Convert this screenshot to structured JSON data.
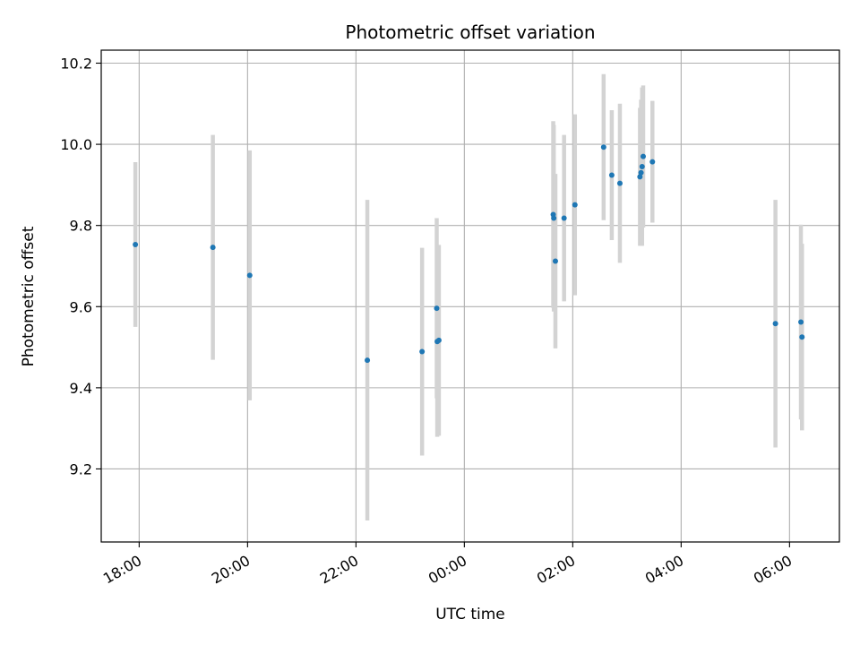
{
  "chart_data": {
    "type": "scatter",
    "title": "Photometric offset variation",
    "xlabel": "UTC time",
    "ylabel": "Photometric offset",
    "x_unit": "hours since 00:00 UTC",
    "xlim": [
      -6.7,
      6.92
    ],
    "ylim": [
      9.02,
      10.232
    ],
    "x_ticks": [
      {
        "value": -6,
        "label": "18:00"
      },
      {
        "value": -4,
        "label": "20:00"
      },
      {
        "value": -2,
        "label": "22:00"
      },
      {
        "value": 0,
        "label": "00:00"
      },
      {
        "value": 2,
        "label": "02:00"
      },
      {
        "value": 4,
        "label": "04:00"
      },
      {
        "value": 6,
        "label": "06:00"
      }
    ],
    "y_ticks": [
      {
        "value": 9.2,
        "label": "9.2"
      },
      {
        "value": 9.4,
        "label": "9.4"
      },
      {
        "value": 9.6,
        "label": "9.6"
      },
      {
        "value": 9.8,
        "label": "9.8"
      },
      {
        "value": 10.0,
        "label": "10.0"
      },
      {
        "value": 10.2,
        "label": "10.2"
      }
    ],
    "grid": true,
    "marker_color": "#1f77b4",
    "errorbar_color": "#d3d3d3",
    "points": [
      {
        "x": -6.07,
        "y": 9.753,
        "err": 0.203
      },
      {
        "x": -4.64,
        "y": 9.746,
        "err": 0.277
      },
      {
        "x": -3.96,
        "y": 9.677,
        "err": 0.308
      },
      {
        "x": -1.79,
        "y": 9.468,
        "err": 0.395
      },
      {
        "x": -0.78,
        "y": 9.489,
        "err": 0.256
      },
      {
        "x": -0.51,
        "y": 9.596,
        "err": 0.222
      },
      {
        "x": -0.5,
        "y": 9.514,
        "err": 0.235
      },
      {
        "x": -0.47,
        "y": 9.517,
        "err": 0.235
      },
      {
        "x": 1.64,
        "y": 9.827,
        "err": 0.23
      },
      {
        "x": 1.65,
        "y": 9.818,
        "err": 0.23
      },
      {
        "x": 1.68,
        "y": 9.712,
        "err": 0.215
      },
      {
        "x": 1.84,
        "y": 9.818,
        "err": 0.205
      },
      {
        "x": 2.04,
        "y": 9.851,
        "err": 0.223
      },
      {
        "x": 2.57,
        "y": 9.993,
        "err": 0.18
      },
      {
        "x": 2.72,
        "y": 9.924,
        "err": 0.16
      },
      {
        "x": 2.87,
        "y": 9.904,
        "err": 0.196
      },
      {
        "x": 3.24,
        "y": 9.92,
        "err": 0.17
      },
      {
        "x": 3.26,
        "y": 9.93,
        "err": 0.18
      },
      {
        "x": 3.28,
        "y": 9.945,
        "err": 0.195
      },
      {
        "x": 3.3,
        "y": 9.97,
        "err": 0.175
      },
      {
        "x": 3.47,
        "y": 9.957,
        "err": 0.15
      },
      {
        "x": 5.74,
        "y": 9.558,
        "err": 0.305
      },
      {
        "x": 6.21,
        "y": 9.562,
        "err": 0.24
      },
      {
        "x": 6.23,
        "y": 9.525,
        "err": 0.23
      }
    ]
  }
}
